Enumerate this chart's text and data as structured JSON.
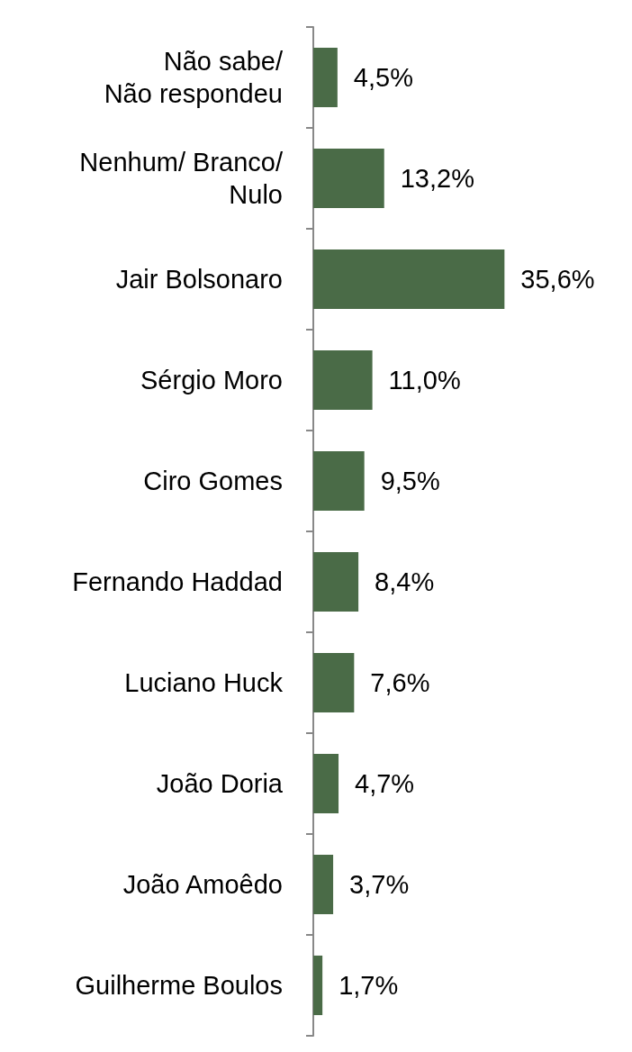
{
  "chart_data": {
    "type": "bar",
    "orientation": "horizontal",
    "categories": [
      "Não sabe/\nNão respondeu",
      "Nenhum/ Branco/\nNulo",
      "Jair Bolsonaro",
      "Sérgio Moro",
      "Ciro Gomes",
      "Fernando Haddad",
      "Luciano Huck",
      "João Doria",
      "João Amoêdo",
      "Guilherme Boulos"
    ],
    "values": [
      4.5,
      13.2,
      35.6,
      11.0,
      9.5,
      8.4,
      7.6,
      4.7,
      3.7,
      1.7
    ],
    "value_labels": [
      "4,5%",
      "13,2%",
      "35,6%",
      "11,0%",
      "9,5%",
      "8,4%",
      "7,6%",
      "4,7%",
      "3,7%",
      "1,7%"
    ],
    "color": "#4a6b47"
  }
}
